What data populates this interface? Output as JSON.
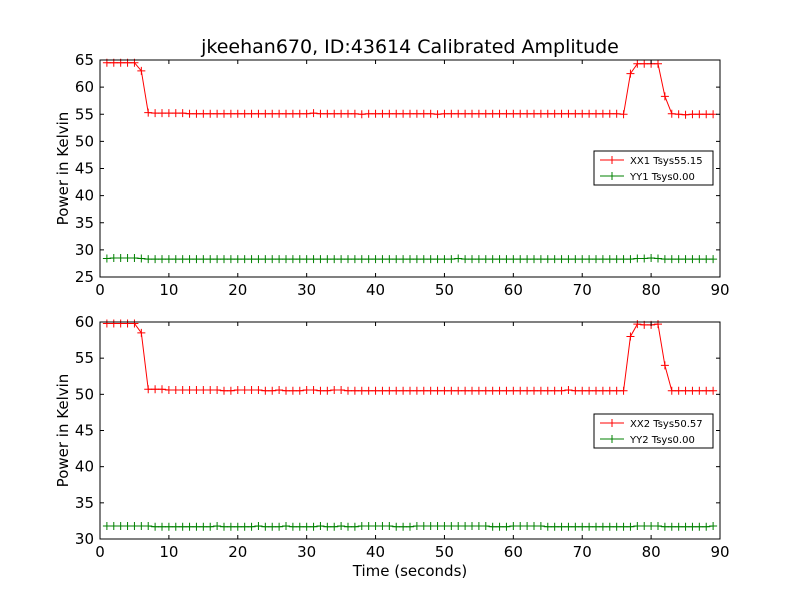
{
  "title": "jkeehan670, ID:43614 Calibrated Amplitude",
  "xlabel": "Time (seconds)",
  "chart_data": [
    {
      "type": "line",
      "ylabel": "Power in Kelvin",
      "xlim": [
        0,
        90
      ],
      "ylim": [
        25,
        65
      ],
      "xticks": [
        0,
        10,
        20,
        30,
        40,
        50,
        60,
        70,
        80,
        90
      ],
      "yticks": [
        25,
        30,
        35,
        40,
        45,
        50,
        55,
        60,
        65
      ],
      "legend_position": "center-right",
      "x": [
        1,
        2,
        3,
        4,
        5,
        6,
        7,
        8,
        9,
        10,
        11,
        12,
        13,
        14,
        15,
        16,
        17,
        18,
        19,
        20,
        21,
        22,
        23,
        24,
        25,
        26,
        27,
        28,
        29,
        30,
        31,
        32,
        33,
        34,
        35,
        36,
        37,
        38,
        39,
        40,
        41,
        42,
        43,
        44,
        45,
        46,
        47,
        48,
        49,
        50,
        51,
        52,
        53,
        54,
        55,
        56,
        57,
        58,
        59,
        60,
        61,
        62,
        63,
        64,
        65,
        66,
        67,
        68,
        69,
        70,
        71,
        72,
        73,
        74,
        75,
        76,
        77,
        78,
        79,
        80,
        81,
        82,
        83,
        84,
        85,
        86,
        87,
        88,
        89
      ],
      "series": [
        {
          "name": "XX1 Tsys55.15",
          "color": "#ff0000",
          "values": [
            64.5,
            64.5,
            64.5,
            64.5,
            64.5,
            63.0,
            55.3,
            55.2,
            55.2,
            55.2,
            55.2,
            55.2,
            55.1,
            55.1,
            55.1,
            55.1,
            55.1,
            55.1,
            55.1,
            55.1,
            55.1,
            55.1,
            55.1,
            55.1,
            55.1,
            55.1,
            55.1,
            55.1,
            55.1,
            55.1,
            55.2,
            55.1,
            55.1,
            55.1,
            55.1,
            55.1,
            55.1,
            55.0,
            55.1,
            55.1,
            55.1,
            55.1,
            55.1,
            55.1,
            55.1,
            55.1,
            55.1,
            55.1,
            55.0,
            55.1,
            55.1,
            55.1,
            55.1,
            55.1,
            55.1,
            55.1,
            55.1,
            55.1,
            55.1,
            55.1,
            55.1,
            55.1,
            55.1,
            55.1,
            55.1,
            55.1,
            55.1,
            55.1,
            55.1,
            55.1,
            55.1,
            55.1,
            55.1,
            55.1,
            55.1,
            55.0,
            62.5,
            64.3,
            64.3,
            64.3,
            64.3,
            58.3,
            55.1,
            55.0,
            54.9,
            55.0,
            55.0,
            55.0,
            55.0
          ]
        },
        {
          "name": "YY1 Tsys0.00",
          "color": "#008000",
          "values": [
            28.4,
            28.5,
            28.5,
            28.5,
            28.5,
            28.4,
            28.3,
            28.3,
            28.3,
            28.3,
            28.3,
            28.3,
            28.3,
            28.3,
            28.3,
            28.3,
            28.3,
            28.3,
            28.3,
            28.3,
            28.3,
            28.3,
            28.3,
            28.3,
            28.3,
            28.3,
            28.3,
            28.3,
            28.3,
            28.3,
            28.3,
            28.3,
            28.3,
            28.3,
            28.3,
            28.3,
            28.3,
            28.3,
            28.3,
            28.3,
            28.3,
            28.3,
            28.3,
            28.3,
            28.3,
            28.3,
            28.3,
            28.3,
            28.3,
            28.3,
            28.3,
            28.4,
            28.3,
            28.3,
            28.3,
            28.3,
            28.3,
            28.3,
            28.3,
            28.3,
            28.3,
            28.3,
            28.3,
            28.3,
            28.3,
            28.3,
            28.3,
            28.3,
            28.3,
            28.3,
            28.3,
            28.3,
            28.3,
            28.3,
            28.3,
            28.3,
            28.3,
            28.4,
            28.4,
            28.5,
            28.4,
            28.3,
            28.3,
            28.3,
            28.3,
            28.3,
            28.3,
            28.3,
            28.3
          ]
        }
      ]
    },
    {
      "type": "line",
      "ylabel": "Power in Kelvin",
      "xlim": [
        0,
        90
      ],
      "ylim": [
        30,
        60
      ],
      "xticks": [
        0,
        10,
        20,
        30,
        40,
        50,
        60,
        70,
        80,
        90
      ],
      "yticks": [
        30,
        35,
        40,
        45,
        50,
        55,
        60
      ],
      "legend_position": "center-right",
      "x": [
        1,
        2,
        3,
        4,
        5,
        6,
        7,
        8,
        9,
        10,
        11,
        12,
        13,
        14,
        15,
        16,
        17,
        18,
        19,
        20,
        21,
        22,
        23,
        24,
        25,
        26,
        27,
        28,
        29,
        30,
        31,
        32,
        33,
        34,
        35,
        36,
        37,
        38,
        39,
        40,
        41,
        42,
        43,
        44,
        45,
        46,
        47,
        48,
        49,
        50,
        51,
        52,
        53,
        54,
        55,
        56,
        57,
        58,
        59,
        60,
        61,
        62,
        63,
        64,
        65,
        66,
        67,
        68,
        69,
        70,
        71,
        72,
        73,
        74,
        75,
        76,
        77,
        78,
        79,
        80,
        81,
        82,
        83,
        84,
        85,
        86,
        87,
        88,
        89
      ],
      "series": [
        {
          "name": "XX2 Tsys50.57",
          "color": "#ff0000",
          "values": [
            59.8,
            59.8,
            59.8,
            59.8,
            59.8,
            58.5,
            50.7,
            50.7,
            50.7,
            50.6,
            50.6,
            50.6,
            50.6,
            50.6,
            50.6,
            50.6,
            50.6,
            50.5,
            50.5,
            50.6,
            50.6,
            50.6,
            50.6,
            50.5,
            50.5,
            50.6,
            50.5,
            50.5,
            50.5,
            50.6,
            50.6,
            50.5,
            50.5,
            50.6,
            50.6,
            50.5,
            50.5,
            50.5,
            50.5,
            50.5,
            50.5,
            50.5,
            50.5,
            50.5,
            50.5,
            50.5,
            50.5,
            50.5,
            50.5,
            50.5,
            50.5,
            50.5,
            50.5,
            50.5,
            50.5,
            50.5,
            50.5,
            50.5,
            50.5,
            50.5,
            50.5,
            50.5,
            50.5,
            50.5,
            50.5,
            50.5,
            50.5,
            50.6,
            50.5,
            50.5,
            50.5,
            50.5,
            50.5,
            50.5,
            50.5,
            50.5,
            58.0,
            59.7,
            59.6,
            59.6,
            59.7,
            54.0,
            50.5,
            50.5,
            50.5,
            50.5,
            50.5,
            50.5,
            50.5
          ]
        },
        {
          "name": "YY2 Tsys0.00",
          "color": "#008000",
          "values": [
            31.8,
            31.8,
            31.8,
            31.8,
            31.8,
            31.8,
            31.8,
            31.7,
            31.7,
            31.7,
            31.7,
            31.7,
            31.7,
            31.7,
            31.7,
            31.7,
            31.8,
            31.7,
            31.7,
            31.7,
            31.7,
            31.7,
            31.8,
            31.7,
            31.7,
            31.7,
            31.8,
            31.7,
            31.7,
            31.7,
            31.7,
            31.8,
            31.7,
            31.7,
            31.8,
            31.7,
            31.7,
            31.8,
            31.8,
            31.8,
            31.8,
            31.8,
            31.7,
            31.7,
            31.7,
            31.8,
            31.8,
            31.8,
            31.8,
            31.8,
            31.8,
            31.8,
            31.8,
            31.8,
            31.8,
            31.8,
            31.7,
            31.7,
            31.7,
            31.8,
            31.8,
            31.8,
            31.8,
            31.8,
            31.7,
            31.7,
            31.7,
            31.7,
            31.7,
            31.7,
            31.7,
            31.7,
            31.7,
            31.7,
            31.7,
            31.7,
            31.7,
            31.8,
            31.8,
            31.8,
            31.8,
            31.7,
            31.7,
            31.7,
            31.7,
            31.7,
            31.7,
            31.7,
            31.8
          ]
        }
      ]
    }
  ]
}
